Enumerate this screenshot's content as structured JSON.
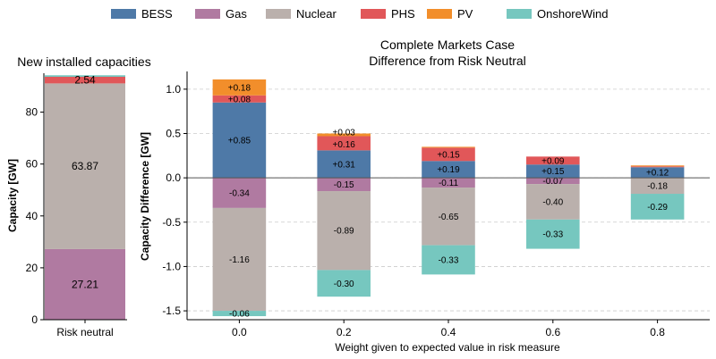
{
  "legend": [
    {
      "name": "BESS",
      "color": "#4e79a7"
    },
    {
      "name": "Gas",
      "color": "#b07aa1"
    },
    {
      "name": "Nuclear",
      "color": "#bab0ac"
    },
    {
      "name": "PHS",
      "color": "#e15759"
    },
    {
      "name": "PV",
      "color": "#f28e2b"
    },
    {
      "name": "OnshoreWind",
      "color": "#76c7bf"
    }
  ],
  "chart_data": [
    {
      "type": "bar",
      "stacked": true,
      "title": "New installed capacities",
      "ylabel": "Capacity [GW]",
      "xlabel": "",
      "categories": [
        "Risk neutral"
      ],
      "ylim": [
        0,
        95
      ],
      "yticks": [
        0,
        20,
        40,
        60,
        80
      ],
      "grid": false,
      "series": [
        {
          "name": "Gas",
          "values": [
            27.21
          ]
        },
        {
          "name": "Nuclear",
          "values": [
            63.87
          ]
        },
        {
          "name": "PHS",
          "values": [
            2.54
          ]
        },
        {
          "name": "OnshoreWind",
          "values": [
            0.6
          ]
        }
      ],
      "data_labels": [
        {
          "series": "Gas",
          "text": "27.21"
        },
        {
          "series": "Nuclear",
          "text": "63.87"
        },
        {
          "series": "PHS",
          "text": "2.54"
        }
      ]
    },
    {
      "type": "bar",
      "stacked": true,
      "title": "Complete Markets Case",
      "subtitle": "Difference from Risk Neutral",
      "ylabel": "Capacity Difference [GW]",
      "xlabel": "Weight given to expected value in risk measure",
      "categories": [
        "0.0",
        "0.2",
        "0.4",
        "0.6",
        "0.8"
      ],
      "ylim": [
        -1.6,
        1.2
      ],
      "yticks": [
        "-1.5",
        "-1.0",
        "-0.5",
        "0.0",
        "0.5",
        "1.0"
      ],
      "grid": "horizontal dashed",
      "series": [
        {
          "name": "BESS",
          "values": [
            0.85,
            0.31,
            0.19,
            0.15,
            0.12
          ]
        },
        {
          "name": "Gas",
          "values": [
            -0.34,
            -0.15,
            -0.11,
            -0.07,
            0
          ]
        },
        {
          "name": "Nuclear",
          "values": [
            -1.16,
            -0.89,
            -0.65,
            -0.4,
            -0.18
          ]
        },
        {
          "name": "PHS",
          "values": [
            0.08,
            0.16,
            0.15,
            0.09,
            0.01
          ]
        },
        {
          "name": "PV",
          "values": [
            0.18,
            0.03,
            0.01,
            0,
            0.01
          ]
        },
        {
          "name": "OnshoreWind",
          "values": [
            -0.06,
            -0.3,
            -0.33,
            -0.33,
            -0.29
          ]
        }
      ],
      "data_labels": [
        {
          "cat": 0,
          "series": "PV",
          "text": "+0.18"
        },
        {
          "cat": 0,
          "series": "PHS",
          "text": "+0.08"
        },
        {
          "cat": 0,
          "series": "BESS",
          "text": "+0.85"
        },
        {
          "cat": 0,
          "series": "Gas",
          "text": "-0.34"
        },
        {
          "cat": 0,
          "series": "Nuclear",
          "text": "-1.16"
        },
        {
          "cat": 0,
          "series": "OnshoreWind",
          "text": "-0.06"
        },
        {
          "cat": 1,
          "series": "PV",
          "text": "+0.03"
        },
        {
          "cat": 1,
          "series": "PHS",
          "text": "+0.16"
        },
        {
          "cat": 1,
          "series": "BESS",
          "text": "+0.31"
        },
        {
          "cat": 1,
          "series": "Gas",
          "text": "-0.15"
        },
        {
          "cat": 1,
          "series": "Nuclear",
          "text": "-0.89"
        },
        {
          "cat": 1,
          "series": "OnshoreWind",
          "text": "-0.30"
        },
        {
          "cat": 2,
          "series": "PHS",
          "text": "+0.15"
        },
        {
          "cat": 2,
          "series": "BESS",
          "text": "+0.19"
        },
        {
          "cat": 2,
          "series": "Gas",
          "text": "-0.11"
        },
        {
          "cat": 2,
          "series": "Nuclear",
          "text": "-0.65"
        },
        {
          "cat": 2,
          "series": "OnshoreWind",
          "text": "-0.33"
        },
        {
          "cat": 3,
          "series": "PHS",
          "text": "+0.09"
        },
        {
          "cat": 3,
          "series": "BESS",
          "text": "+0.15"
        },
        {
          "cat": 3,
          "series": "Gas",
          "text": "-0.07"
        },
        {
          "cat": 3,
          "series": "Nuclear",
          "text": "-0.40"
        },
        {
          "cat": 3,
          "series": "OnshoreWind",
          "text": "-0.33"
        },
        {
          "cat": 4,
          "series": "BESS",
          "text": "+0.12"
        },
        {
          "cat": 4,
          "series": "Nuclear",
          "text": "-0.18"
        },
        {
          "cat": 4,
          "series": "OnshoreWind",
          "text": "-0.29"
        }
      ]
    }
  ]
}
